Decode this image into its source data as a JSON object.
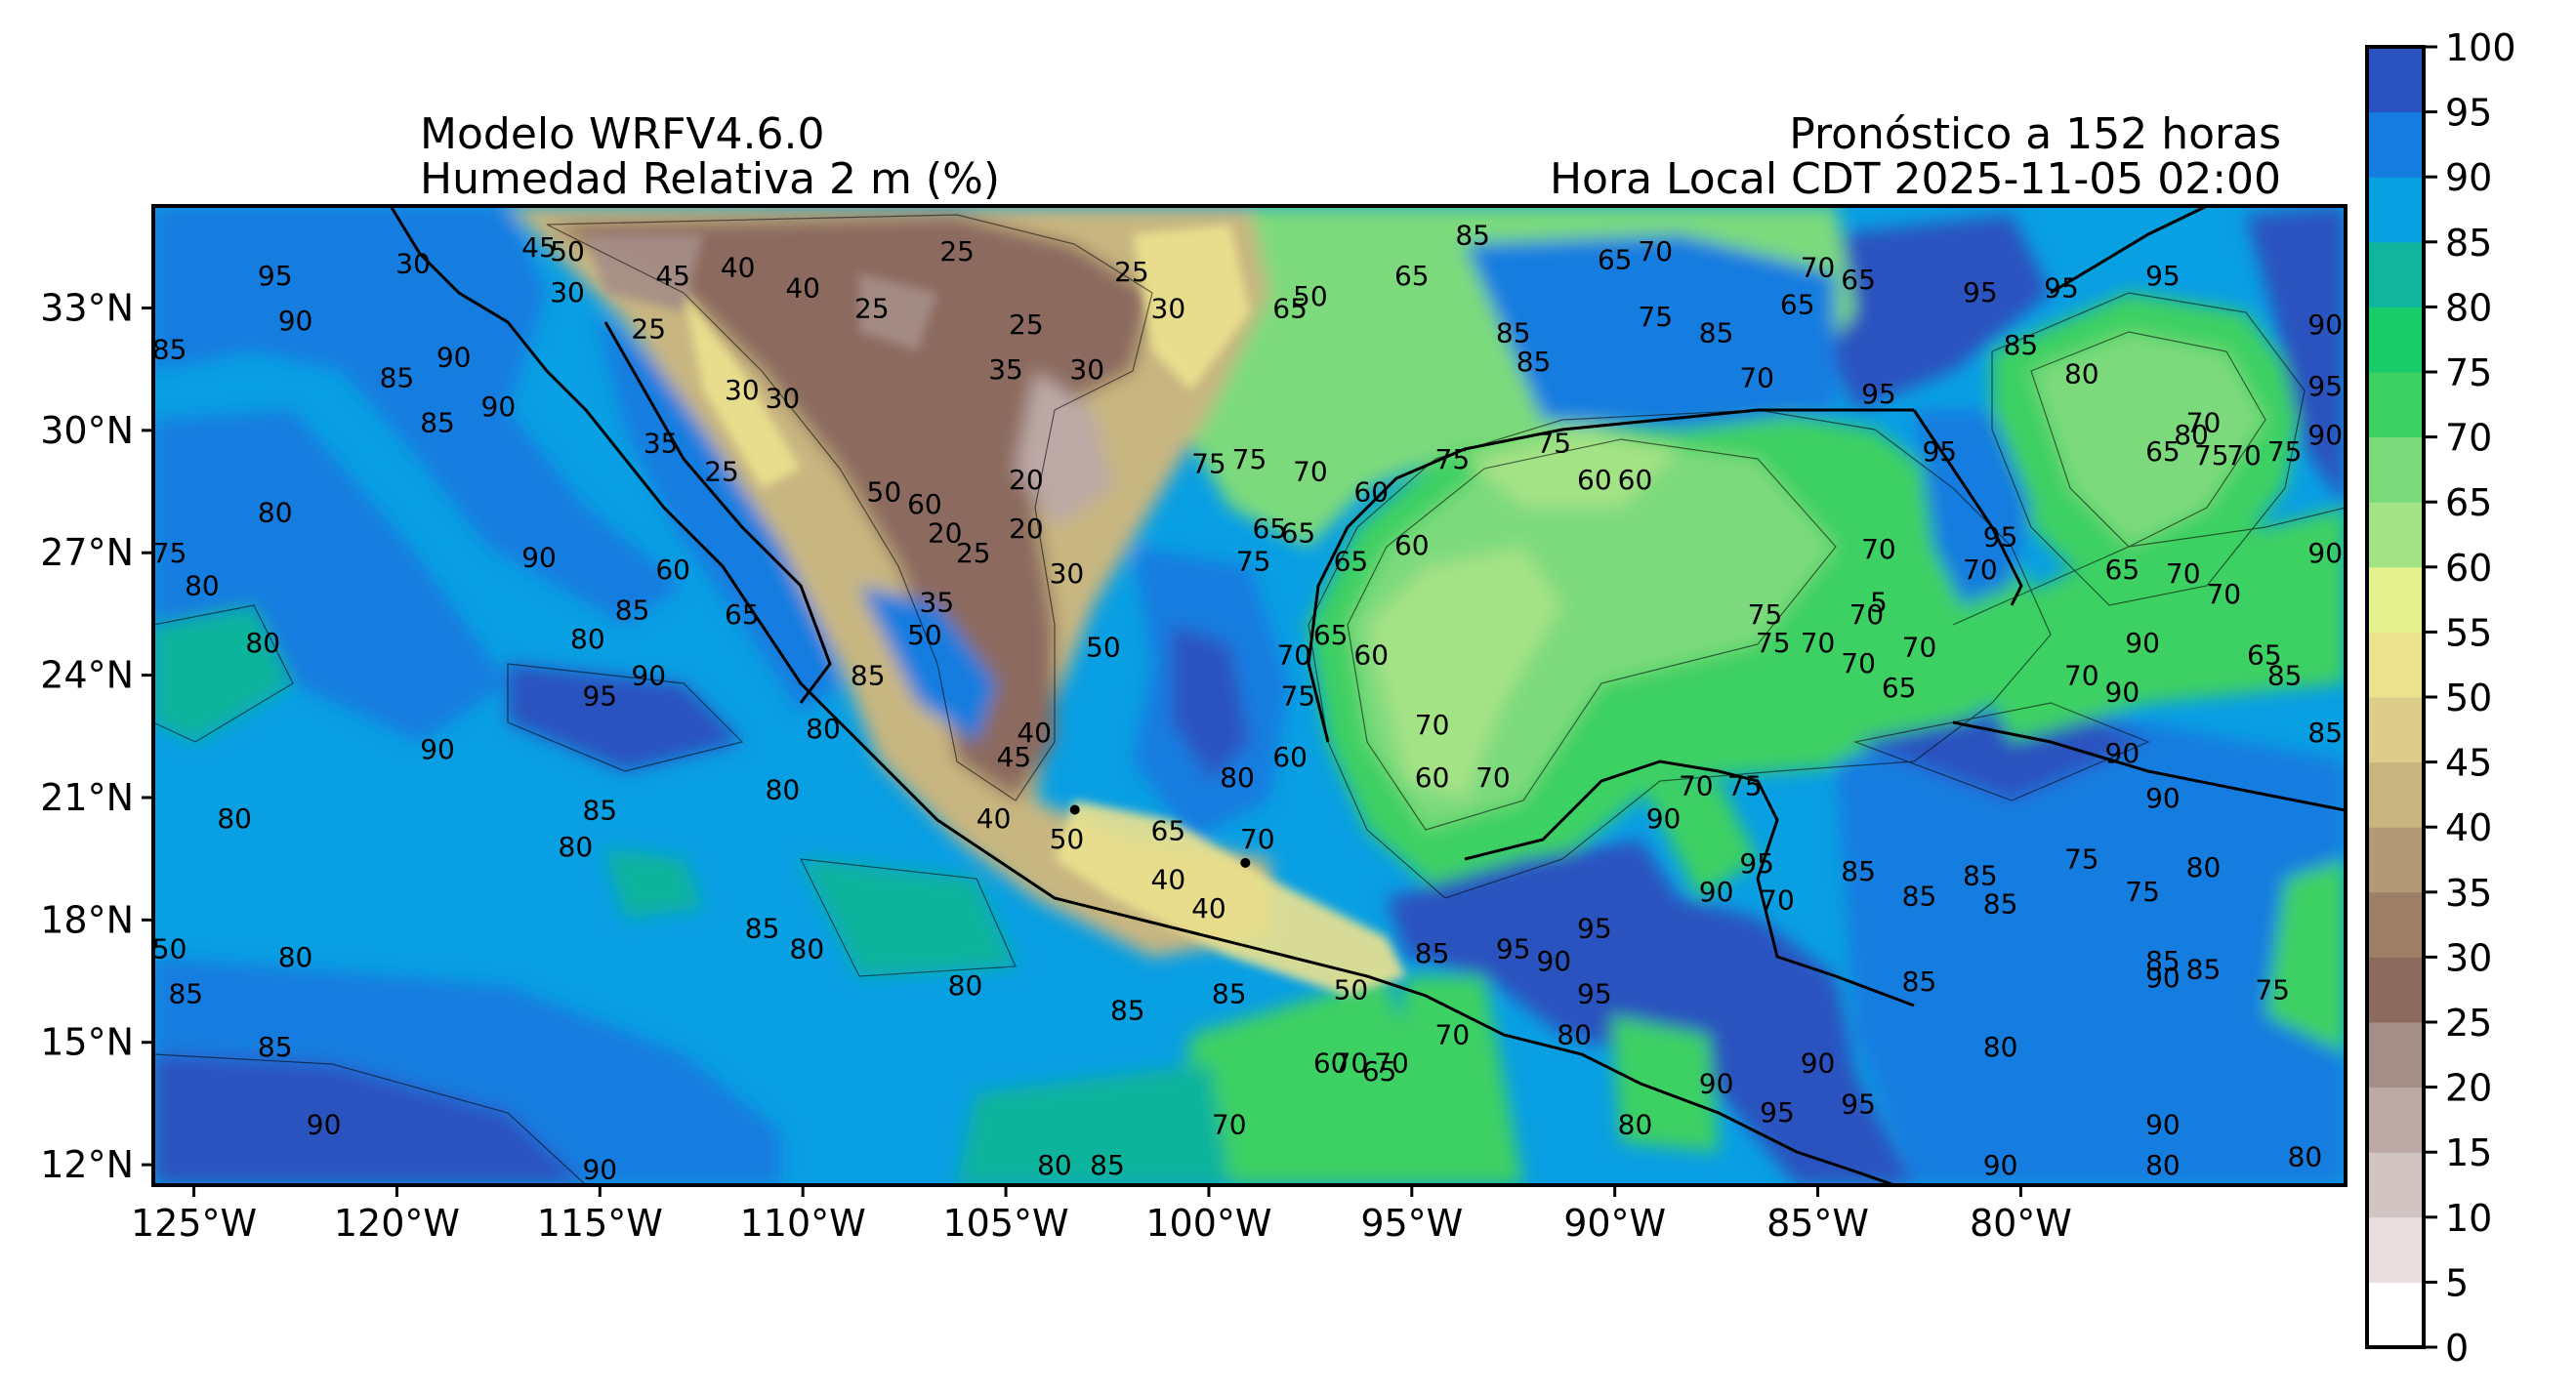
{
  "titles": {
    "left_line1": "Modelo WRFV4.6.0",
    "left_line2": "Humedad Relativa 2 m (%)",
    "right_line1": "Pronóstico a 152 horas",
    "right_line2": "Hora Local CDT 2025-11-05 02:00"
  },
  "map": {
    "lon_range": [
      -126.0,
      -72.0
    ],
    "lat_range": [
      11.5,
      35.5
    ],
    "lon_ticks": [
      {
        "value": -125,
        "label": "125°W"
      },
      {
        "value": -120,
        "label": "120°W"
      },
      {
        "value": -115,
        "label": "115°W"
      },
      {
        "value": -110,
        "label": "110°W"
      },
      {
        "value": -105,
        "label": "105°W"
      },
      {
        "value": -100,
        "label": "100°W"
      },
      {
        "value": -95,
        "label": "95°W"
      },
      {
        "value": -90,
        "label": "90°W"
      },
      {
        "value": -85,
        "label": "85°W"
      },
      {
        "value": -80,
        "label": "80°W"
      }
    ],
    "lat_ticks": [
      {
        "value": 12,
        "label": "12°N"
      },
      {
        "value": 15,
        "label": "15°N"
      },
      {
        "value": 18,
        "label": "18°N"
      },
      {
        "value": 21,
        "label": "21°N"
      },
      {
        "value": 24,
        "label": "24°N"
      },
      {
        "value": 27,
        "label": "27°N"
      },
      {
        "value": 30,
        "label": "30°N"
      },
      {
        "value": 33,
        "label": "33°N"
      }
    ],
    "contour_labels": [
      {
        "lon": -123.0,
        "lat": 33.8,
        "text": "95"
      },
      {
        "lon": -122.5,
        "lat": 32.7,
        "text": "90"
      },
      {
        "lon": -125.6,
        "lat": 32.0,
        "text": "85"
      },
      {
        "lon": -118.6,
        "lat": 31.8,
        "text": "90"
      },
      {
        "lon": -119.0,
        "lat": 30.2,
        "text": "85"
      },
      {
        "lon": -117.5,
        "lat": 30.6,
        "text": "90"
      },
      {
        "lon": -120.0,
        "lat": 31.3,
        "text": "85"
      },
      {
        "lon": -123.0,
        "lat": 28.0,
        "text": "80"
      },
      {
        "lon": -125.6,
        "lat": 27.0,
        "text": "75"
      },
      {
        "lon": -124.8,
        "lat": 26.2,
        "text": "80"
      },
      {
        "lon": -123.3,
        "lat": 24.8,
        "text": "80"
      },
      {
        "lon": -116.5,
        "lat": 26.9,
        "text": "90"
      },
      {
        "lon": -115.3,
        "lat": 24.9,
        "text": "80"
      },
      {
        "lon": -114.2,
        "lat": 25.6,
        "text": "85"
      },
      {
        "lon": -113.8,
        "lat": 24.0,
        "text": "90"
      },
      {
        "lon": -115.0,
        "lat": 23.5,
        "text": "95"
      },
      {
        "lon": -119.0,
        "lat": 22.2,
        "text": "90"
      },
      {
        "lon": -124.0,
        "lat": 20.5,
        "text": "80"
      },
      {
        "lon": -115.0,
        "lat": 20.7,
        "text": "85"
      },
      {
        "lon": -115.6,
        "lat": 19.8,
        "text": "80"
      },
      {
        "lon": -110.5,
        "lat": 21.2,
        "text": "80"
      },
      {
        "lon": -122.5,
        "lat": 17.1,
        "text": "80"
      },
      {
        "lon": -125.6,
        "lat": 17.3,
        "text": "50"
      },
      {
        "lon": -125.2,
        "lat": 16.2,
        "text": "85"
      },
      {
        "lon": -111.0,
        "lat": 17.8,
        "text": "85"
      },
      {
        "lon": -109.9,
        "lat": 17.3,
        "text": "80"
      },
      {
        "lon": -123.0,
        "lat": 14.9,
        "text": "85"
      },
      {
        "lon": -121.8,
        "lat": 13.0,
        "text": "90"
      },
      {
        "lon": -115.0,
        "lat": 11.9,
        "text": "90"
      },
      {
        "lon": -106.0,
        "lat": 16.4,
        "text": "80"
      },
      {
        "lon": -102.0,
        "lat": 15.8,
        "text": "85"
      },
      {
        "lon": -103.8,
        "lat": 12.0,
        "text": "80"
      },
      {
        "lon": -102.5,
        "lat": 12.0,
        "text": "85"
      },
      {
        "lon": -119.6,
        "lat": 34.1,
        "text": "30"
      },
      {
        "lon": -116.5,
        "lat": 34.5,
        "text": "45"
      },
      {
        "lon": -115.8,
        "lat": 33.4,
        "text": "30"
      },
      {
        "lon": -115.8,
        "lat": 34.4,
        "text": "50"
      },
      {
        "lon": -113.2,
        "lat": 33.8,
        "text": "45"
      },
      {
        "lon": -111.6,
        "lat": 34.0,
        "text": "40"
      },
      {
        "lon": -113.8,
        "lat": 32.5,
        "text": "25"
      },
      {
        "lon": -110.0,
        "lat": 33.5,
        "text": "40"
      },
      {
        "lon": -108.3,
        "lat": 33.0,
        "text": "25"
      },
      {
        "lon": -106.2,
        "lat": 34.4,
        "text": "25"
      },
      {
        "lon": -104.5,
        "lat": 32.6,
        "text": "25"
      },
      {
        "lon": -105.0,
        "lat": 31.5,
        "text": "35"
      },
      {
        "lon": -103.0,
        "lat": 31.5,
        "text": "30"
      },
      {
        "lon": -101.9,
        "lat": 33.9,
        "text": "25"
      },
      {
        "lon": -101.0,
        "lat": 33.0,
        "text": "30"
      },
      {
        "lon": -111.5,
        "lat": 31.0,
        "text": "30"
      },
      {
        "lon": -110.5,
        "lat": 30.8,
        "text": "30"
      },
      {
        "lon": -113.5,
        "lat": 29.7,
        "text": "35"
      },
      {
        "lon": -112.0,
        "lat": 29.0,
        "text": "25"
      },
      {
        "lon": -108.0,
        "lat": 28.5,
        "text": "50"
      },
      {
        "lon": -107.0,
        "lat": 28.2,
        "text": "60"
      },
      {
        "lon": -105.8,
        "lat": 27.0,
        "text": "25"
      },
      {
        "lon": -104.5,
        "lat": 28.8,
        "text": "20"
      },
      {
        "lon": -106.5,
        "lat": 27.5,
        "text": "20"
      },
      {
        "lon": -106.7,
        "lat": 25.8,
        "text": "35"
      },
      {
        "lon": -104.5,
        "lat": 27.6,
        "text": "20"
      },
      {
        "lon": -103.5,
        "lat": 26.5,
        "text": "30"
      },
      {
        "lon": -102.6,
        "lat": 24.7,
        "text": "50"
      },
      {
        "lon": -107.0,
        "lat": 25.0,
        "text": "50"
      },
      {
        "lon": -113.2,
        "lat": 26.6,
        "text": "60"
      },
      {
        "lon": -111.5,
        "lat": 25.5,
        "text": "65"
      },
      {
        "lon": -109.5,
        "lat": 22.7,
        "text": "80"
      },
      {
        "lon": -108.4,
        "lat": 24.0,
        "text": "85"
      },
      {
        "lon": -104.3,
        "lat": 22.6,
        "text": "40"
      },
      {
        "lon": -104.8,
        "lat": 22.0,
        "text": "45"
      },
      {
        "lon": -105.3,
        "lat": 20.5,
        "text": "40"
      },
      {
        "lon": -103.5,
        "lat": 20.0,
        "text": "50"
      },
      {
        "lon": -101.0,
        "lat": 19.0,
        "text": "40"
      },
      {
        "lon": -100.0,
        "lat": 18.3,
        "text": "40"
      },
      {
        "lon": -101.0,
        "lat": 20.2,
        "text": "65"
      },
      {
        "lon": -100.0,
        "lat": 29.2,
        "text": "75"
      },
      {
        "lon": -99.0,
        "lat": 29.3,
        "text": "75"
      },
      {
        "lon": -98.0,
        "lat": 33.0,
        "text": "65"
      },
      {
        "lon": -97.5,
        "lat": 33.3,
        "text": "50"
      },
      {
        "lon": -95.0,
        "lat": 33.8,
        "text": "65"
      },
      {
        "lon": -92.5,
        "lat": 32.4,
        "text": "85"
      },
      {
        "lon": -93.5,
        "lat": 34.8,
        "text": "85"
      },
      {
        "lon": -92.0,
        "lat": 31.7,
        "text": "85"
      },
      {
        "lon": -90.0,
        "lat": 34.2,
        "text": "65"
      },
      {
        "lon": -89.0,
        "lat": 34.4,
        "text": "70"
      },
      {
        "lon": -89.0,
        "lat": 32.8,
        "text": "75"
      },
      {
        "lon": -87.5,
        "lat": 32.4,
        "text": "85"
      },
      {
        "lon": -86.5,
        "lat": 31.3,
        "text": "70"
      },
      {
        "lon": -85.5,
        "lat": 33.1,
        "text": "65"
      },
      {
        "lon": -85.0,
        "lat": 34.0,
        "text": "70"
      },
      {
        "lon": -84.0,
        "lat": 33.7,
        "text": "65"
      },
      {
        "lon": -83.5,
        "lat": 30.9,
        "text": "95"
      },
      {
        "lon": -81.0,
        "lat": 33.4,
        "text": "95"
      },
      {
        "lon": -80.0,
        "lat": 32.1,
        "text": "85"
      },
      {
        "lon": -79.0,
        "lat": 33.5,
        "text": "95"
      },
      {
        "lon": -76.5,
        "lat": 33.8,
        "text": "95"
      },
      {
        "lon": -72.5,
        "lat": 32.6,
        "text": "90"
      },
      {
        "lon": -72.5,
        "lat": 31.1,
        "text": "95"
      },
      {
        "lon": -72.5,
        "lat": 29.9,
        "text": "90"
      },
      {
        "lon": -78.5,
        "lat": 31.4,
        "text": "80"
      },
      {
        "lon": -82.0,
        "lat": 29.5,
        "text": "95"
      },
      {
        "lon": -76.5,
        "lat": 29.5,
        "text": "65"
      },
      {
        "lon": -75.5,
        "lat": 30.2,
        "text": "70"
      },
      {
        "lon": -75.3,
        "lat": 29.4,
        "text": "75"
      },
      {
        "lon": -74.5,
        "lat": 29.4,
        "text": "70"
      },
      {
        "lon": -75.8,
        "lat": 29.9,
        "text": "80"
      },
      {
        "lon": -73.5,
        "lat": 29.5,
        "text": "75"
      },
      {
        "lon": -72.5,
        "lat": 27.0,
        "text": "90"
      },
      {
        "lon": -77.5,
        "lat": 26.6,
        "text": "65"
      },
      {
        "lon": -76.0,
        "lat": 26.5,
        "text": "70"
      },
      {
        "lon": -75.0,
        "lat": 26.0,
        "text": "70"
      },
      {
        "lon": -81.0,
        "lat": 26.6,
        "text": "70"
      },
      {
        "lon": -83.5,
        "lat": 27.1,
        "text": "70"
      },
      {
        "lon": -80.5,
        "lat": 27.4,
        "text": "95"
      },
      {
        "lon": -77.0,
        "lat": 24.8,
        "text": "90"
      },
      {
        "lon": -77.5,
        "lat": 23.6,
        "text": "90"
      },
      {
        "lon": -78.5,
        "lat": 24.0,
        "text": "70"
      },
      {
        "lon": -74.0,
        "lat": 24.5,
        "text": "65"
      },
      {
        "lon": -73.5,
        "lat": 24.0,
        "text": "85"
      },
      {
        "lon": -72.5,
        "lat": 22.6,
        "text": "85"
      },
      {
        "lon": -77.5,
        "lat": 22.1,
        "text": "90"
      },
      {
        "lon": -76.5,
        "lat": 21.0,
        "text": "90"
      },
      {
        "lon": -97.5,
        "lat": 29.0,
        "text": "70"
      },
      {
        "lon": -96.0,
        "lat": 28.5,
        "text": "60"
      },
      {
        "lon": -95.0,
        "lat": 27.2,
        "text": "60"
      },
      {
        "lon": -94.0,
        "lat": 29.3,
        "text": "75"
      },
      {
        "lon": -91.5,
        "lat": 29.7,
        "text": "75"
      },
      {
        "lon": -90.5,
        "lat": 28.8,
        "text": "60"
      },
      {
        "lon": -89.5,
        "lat": 28.8,
        "text": "60"
      },
      {
        "lon": -96.5,
        "lat": 26.8,
        "text": "65"
      },
      {
        "lon": -97.8,
        "lat": 27.5,
        "text": "65"
      },
      {
        "lon": -98.5,
        "lat": 27.6,
        "text": "65"
      },
      {
        "lon": -98.9,
        "lat": 26.8,
        "text": "75"
      },
      {
        "lon": -97.0,
        "lat": 25.0,
        "text": "65"
      },
      {
        "lon": -96.0,
        "lat": 24.5,
        "text": "60"
      },
      {
        "lon": -97.9,
        "lat": 24.5,
        "text": "70"
      },
      {
        "lon": -97.8,
        "lat": 23.5,
        "text": "75"
      },
      {
        "lon": -98.0,
        "lat": 22.0,
        "text": "60"
      },
      {
        "lon": -98.8,
        "lat": 20.0,
        "text": "70"
      },
      {
        "lon": -99.3,
        "lat": 21.5,
        "text": "80"
      },
      {
        "lon": -94.5,
        "lat": 22.8,
        "text": "70"
      },
      {
        "lon": -94.5,
        "lat": 21.5,
        "text": "60"
      },
      {
        "lon": -93.0,
        "lat": 21.5,
        "text": "70"
      },
      {
        "lon": -88.0,
        "lat": 21.3,
        "text": "70"
      },
      {
        "lon": -86.8,
        "lat": 21.3,
        "text": "75"
      },
      {
        "lon": -86.3,
        "lat": 25.5,
        "text": "75"
      },
      {
        "lon": -86.1,
        "lat": 24.8,
        "text": "75"
      },
      {
        "lon": -85.0,
        "lat": 24.8,
        "text": "70"
      },
      {
        "lon": -83.8,
        "lat": 25.5,
        "text": "70"
      },
      {
        "lon": -82.5,
        "lat": 24.7,
        "text": "70"
      },
      {
        "lon": -83.0,
        "lat": 23.7,
        "text": "65"
      },
      {
        "lon": -84.0,
        "lat": 24.3,
        "text": "70"
      },
      {
        "lon": -83.5,
        "lat": 25.8,
        "text": "5"
      },
      {
        "lon": -88.8,
        "lat": 20.5,
        "text": "90"
      },
      {
        "lon": -86.5,
        "lat": 19.4,
        "text": "95"
      },
      {
        "lon": -87.5,
        "lat": 18.7,
        "text": "90"
      },
      {
        "lon": -86.0,
        "lat": 18.5,
        "text": "70"
      },
      {
        "lon": -84.0,
        "lat": 19.2,
        "text": "85"
      },
      {
        "lon": -82.5,
        "lat": 18.6,
        "text": "85"
      },
      {
        "lon": -81.0,
        "lat": 19.1,
        "text": "85"
      },
      {
        "lon": -80.5,
        "lat": 18.4,
        "text": "85"
      },
      {
        "lon": -78.5,
        "lat": 19.5,
        "text": "75"
      },
      {
        "lon": -77.0,
        "lat": 18.7,
        "text": "75"
      },
      {
        "lon": -75.5,
        "lat": 19.3,
        "text": "80"
      },
      {
        "lon": -76.5,
        "lat": 17.0,
        "text": "85"
      },
      {
        "lon": -75.5,
        "lat": 16.8,
        "text": "85"
      },
      {
        "lon": -73.8,
        "lat": 16.3,
        "text": "75"
      },
      {
        "lon": -82.5,
        "lat": 16.5,
        "text": "85"
      },
      {
        "lon": -80.5,
        "lat": 14.9,
        "text": "80"
      },
      {
        "lon": -76.5,
        "lat": 16.6,
        "text": "90"
      },
      {
        "lon": -76.5,
        "lat": 13.0,
        "text": "90"
      },
      {
        "lon": -80.5,
        "lat": 12.0,
        "text": "90"
      },
      {
        "lon": -76.5,
        "lat": 12.0,
        "text": "80"
      },
      {
        "lon": -73.0,
        "lat": 12.2,
        "text": "80"
      },
      {
        "lon": -92.5,
        "lat": 17.3,
        "text": "95"
      },
      {
        "lon": -91.5,
        "lat": 17.0,
        "text": "90"
      },
      {
        "lon": -90.5,
        "lat": 17.8,
        "text": "95"
      },
      {
        "lon": -90.5,
        "lat": 16.2,
        "text": "95"
      },
      {
        "lon": -91.0,
        "lat": 15.2,
        "text": "80"
      },
      {
        "lon": -94.0,
        "lat": 15.2,
        "text": "70"
      },
      {
        "lon": -95.5,
        "lat": 14.5,
        "text": "70"
      },
      {
        "lon": -95.8,
        "lat": 14.3,
        "text": "65"
      },
      {
        "lon": -96.5,
        "lat": 16.3,
        "text": "50"
      },
      {
        "lon": -94.5,
        "lat": 17.2,
        "text": "85"
      },
      {
        "lon": -89.5,
        "lat": 13.0,
        "text": "80"
      },
      {
        "lon": -87.5,
        "lat": 14.0,
        "text": "90"
      },
      {
        "lon": -86.0,
        "lat": 13.3,
        "text": "95"
      },
      {
        "lon": -84.0,
        "lat": 13.5,
        "text": "95"
      },
      {
        "lon": -85.0,
        "lat": 14.5,
        "text": "90"
      },
      {
        "lon": -99.5,
        "lat": 16.2,
        "text": "85"
      },
      {
        "lon": -96.5,
        "lat": 14.5,
        "text": "70"
      },
      {
        "lon": -97.0,
        "lat": 14.5,
        "text": "60"
      },
      {
        "lon": -99.5,
        "lat": 13.0,
        "text": "70"
      }
    ],
    "cities": [
      {
        "lon": -99.1,
        "lat": 19.4
      },
      {
        "lon": -103.3,
        "lat": 20.7
      }
    ]
  },
  "colorbar": {
    "levels": [
      0,
      5,
      10,
      15,
      20,
      25,
      30,
      35,
      40,
      45,
      50,
      55,
      60,
      65,
      70,
      75,
      80,
      85,
      90,
      95,
      100
    ],
    "colors": [
      "#ffffff",
      "#e8dede",
      "#d2c4c2",
      "#bca9a5",
      "#a68e88",
      "#8c6b5e",
      "#9c7f66",
      "#b29a76",
      "#c8b680",
      "#dccd8a",
      "#ece28e",
      "#e4f28e",
      "#a4e286",
      "#7cda7c",
      "#3dd063",
      "#18cc6a",
      "#11b49c",
      "#08a0e0",
      "#157de0",
      "#2a52c0",
      "#2e3a98"
    ]
  }
}
